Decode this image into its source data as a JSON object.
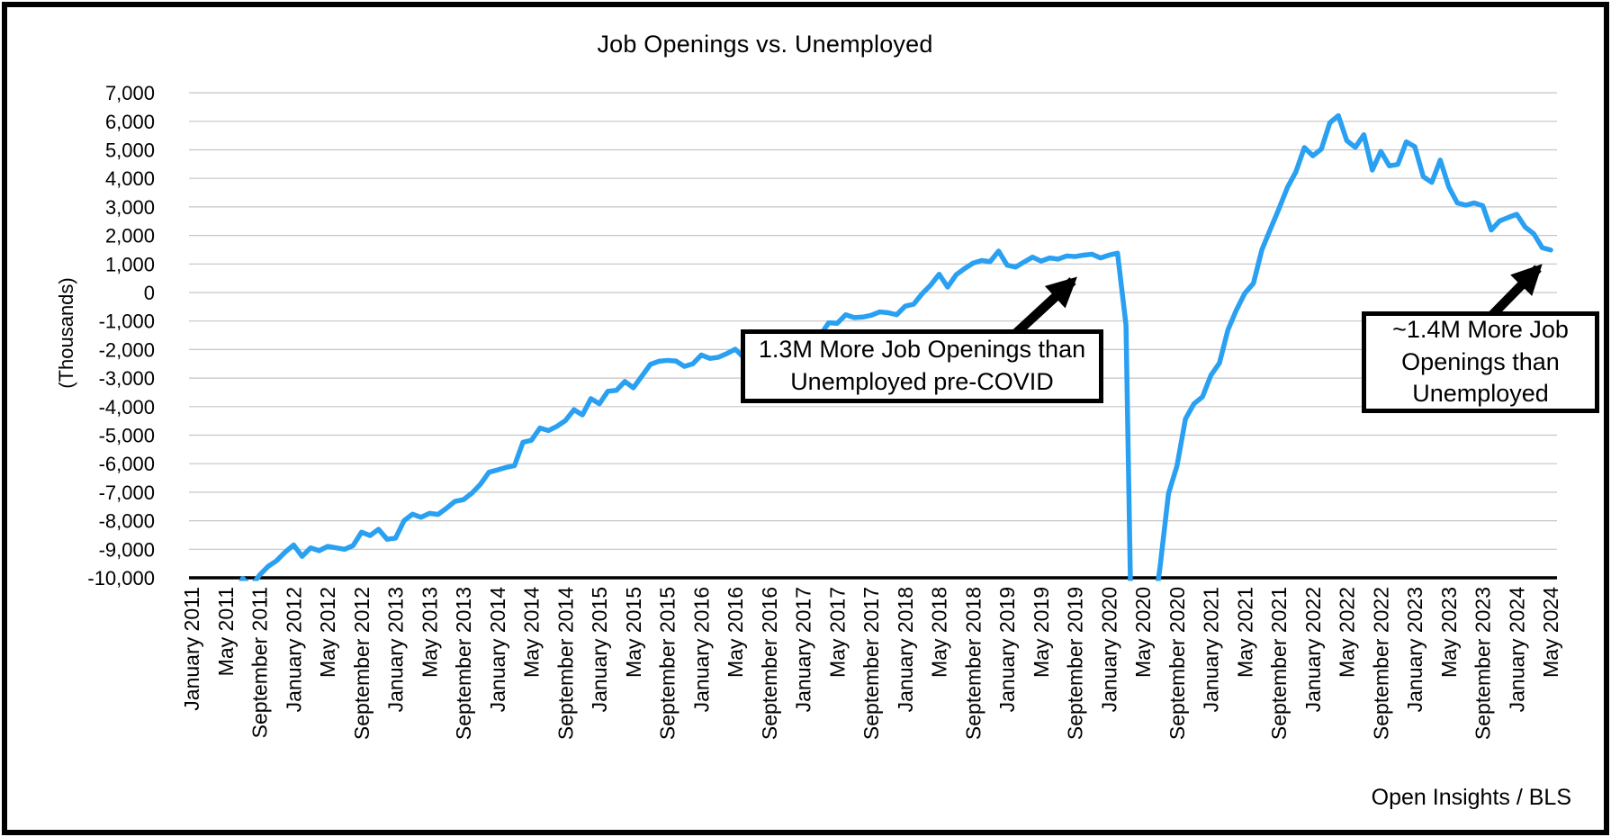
{
  "title": "Job Openings vs. Unemployed",
  "y_axis": {
    "title": "(Thousands)",
    "tick_labels": [
      "7,000",
      "6,000",
      "5,000",
      "4,000",
      "3,000",
      "2,000",
      "1,000",
      "0",
      "-1,000",
      "-2,000",
      "-3,000",
      "-4,000",
      "-5,000",
      "-6,000",
      "-7,000",
      "-8,000",
      "-9,000",
      "-10,000"
    ],
    "max": 7000,
    "min": -10000,
    "step": 1000
  },
  "x_axis": {
    "tick_labels": [
      "January 2011",
      "May 2011",
      "September 2011",
      "January 2012",
      "May 2012",
      "September 2012",
      "January 2013",
      "May 2013",
      "September 2013",
      "January 2014",
      "May 2014",
      "September 2014",
      "January 2015",
      "May 2015",
      "September 2015",
      "January 2016",
      "May 2016",
      "September 2016",
      "January 2017",
      "May 2017",
      "September 2017",
      "January 2018",
      "May 2018",
      "September 2018",
      "January 2019",
      "May 2019",
      "September 2019",
      "January 2020",
      "May 2020",
      "September 2020",
      "January 2021",
      "May 2021",
      "September 2021",
      "January 2022",
      "May 2022",
      "September 2022",
      "January 2023",
      "May 2023",
      "September 2023",
      "January 2024",
      "May 2024"
    ],
    "months_per_tick": 4
  },
  "annotations": [
    {
      "id": "precovid",
      "text": "1.3M More Job Openings than Unemployed pre-COVID"
    },
    {
      "id": "current",
      "text": "~1.4M More Job Openings than Unemployed"
    }
  ],
  "credit": "Open Insights / BLS",
  "colors": {
    "line": "#2aa0f2",
    "grid": "#c6c6c6",
    "axis": "#000000",
    "annotation_border": "#000000",
    "background": "#ffffff"
  },
  "chart_data": {
    "type": "line",
    "title": "Job Openings vs. Unemployed",
    "ylabel": "(Thousands)",
    "ylim": [
      -10000,
      7000
    ],
    "grid": true,
    "legend": false,
    "x_start": "January 2011",
    "x_end": "May 2024",
    "x_frequency": "monthly",
    "clip_note": "values below -10000 plot off-chart (clipped at bottom axis, e.g. April 2020 COVID collapse)",
    "series": [
      {
        "name": "Job openings minus unemployed",
        "values": [
          -11100,
          -10810,
          -10590,
          -10990,
          -10860,
          -10740,
          -10020,
          -10310,
          -9900,
          -9600,
          -9400,
          -9100,
          -8850,
          -9250,
          -8950,
          -9050,
          -8900,
          -8950,
          -9000,
          -8870,
          -8400,
          -8520,
          -8300,
          -8650,
          -8610,
          -8000,
          -7770,
          -7880,
          -7740,
          -7780,
          -7560,
          -7320,
          -7260,
          -7030,
          -6720,
          -6300,
          -6220,
          -6130,
          -6070,
          -5250,
          -5180,
          -4750,
          -4840,
          -4690,
          -4490,
          -4110,
          -4290,
          -3720,
          -3900,
          -3460,
          -3430,
          -3120,
          -3340,
          -2930,
          -2520,
          -2410,
          -2380,
          -2400,
          -2590,
          -2500,
          -2190,
          -2310,
          -2270,
          -2140,
          -1990,
          -2280,
          -1860,
          -1990,
          -2340,
          -2190,
          -1950,
          -2030,
          -2030,
          -1830,
          -1500,
          -1060,
          -1080,
          -780,
          -880,
          -860,
          -800,
          -680,
          -710,
          -780,
          -480,
          -410,
          -40,
          260,
          640,
          190,
          620,
          840,
          1030,
          1120,
          1080,
          1450,
          960,
          890,
          1070,
          1240,
          1100,
          1210,
          1170,
          1280,
          1260,
          1310,
          1340,
          1210,
          1310,
          1380,
          -1140,
          -18490,
          -15580,
          -11760,
          -9640,
          -7050,
          -6080,
          -4430,
          -3900,
          -3660,
          -2900,
          -2470,
          -1310,
          -610,
          -20,
          320,
          1500,
          2220,
          2930,
          3680,
          4230,
          5080,
          4790,
          5030,
          5950,
          6200,
          5320,
          5090,
          5530,
          4290,
          4950,
          4440,
          4490,
          5280,
          5110,
          4060,
          3860,
          4640,
          3700,
          3140,
          3060,
          3140,
          3040,
          2190,
          2510,
          2630,
          2740,
          2290,
          2060,
          1570,
          1490
        ]
      }
    ]
  }
}
